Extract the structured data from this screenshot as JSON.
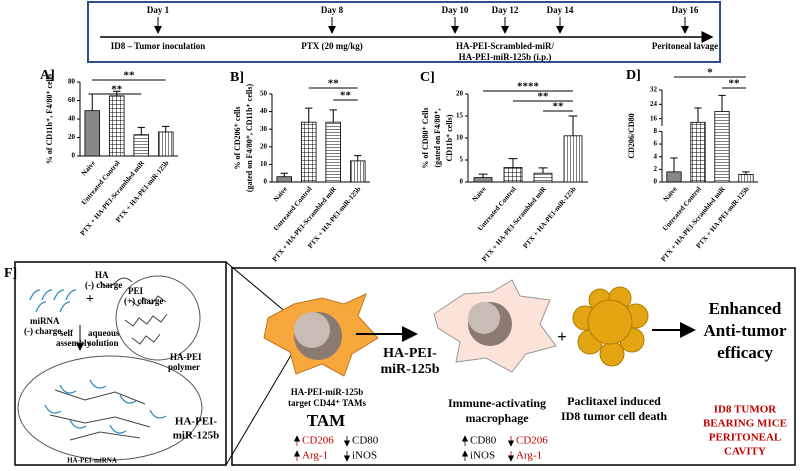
{
  "timeline": {
    "days": [
      "Day 1",
      "Day 8",
      "Day 10",
      "Day 12",
      "Day 14",
      "Day 16"
    ],
    "events": [
      "ID8 – Tumor inoculation",
      "PTX (20 mg/kg)",
      "HA-PEI-Scrambled-miR/",
      "HA-PEI-miR-125b (i.p.)",
      "Peritoneal lavage"
    ]
  },
  "chart_data": [
    {
      "type": "bar",
      "panel": "A]",
      "ylabel": [
        "% of CD11b⁺, F4/80⁺ cells"
      ],
      "categories": [
        "Naive",
        "Untreated Control",
        "PTX + HA-PEI-Scrambled miR",
        "PTX + HA-PEI-miR-125b"
      ],
      "values": [
        49,
        65,
        23,
        26
      ],
      "errors": [
        18,
        5,
        8,
        6
      ],
      "ylim": [
        0,
        80
      ],
      "yticks": [
        0,
        20,
        40,
        60,
        80
      ],
      "annotations": [
        "**",
        "**"
      ]
    },
    {
      "type": "bar",
      "panel": "B]",
      "ylabel": [
        "% of CD206⁺ cells",
        "(gated on F4/80⁺, CD11b⁺ cells)"
      ],
      "categories": [
        "Naive",
        "Untreated Control",
        "PTX + HA-PEI-Scrambled miR",
        "PTX + HA-PEI-miR-125b"
      ],
      "values": [
        3,
        34,
        34,
        12
      ],
      "errors": [
        2,
        8,
        7,
        3
      ],
      "ylim": [
        0,
        50
      ],
      "yticks": [
        0,
        10,
        20,
        30,
        40,
        50
      ],
      "annotations": [
        "**",
        "**"
      ]
    },
    {
      "type": "bar",
      "panel": "C]",
      "ylabel": [
        "% of CD80⁺ Cells",
        "(gated on F4/80⁺,",
        "CD11b⁺ cells)"
      ],
      "categories": [
        "Naive",
        "Untreated Control",
        "PTX + HA-PEI-Scrambled miR",
        "PTX + HA-PEI-miR-125b"
      ],
      "values": [
        1,
        3.3,
        2,
        10.5
      ],
      "errors": [
        0.8,
        2,
        1.2,
        4.5
      ],
      "ylim": [
        0,
        20
      ],
      "yticks": [
        0,
        5,
        10,
        15,
        20
      ],
      "annotations": [
        "****",
        "**",
        "**"
      ]
    },
    {
      "type": "bar",
      "panel": "D]",
      "ylabel": [
        "CD206/CD80"
      ],
      "categories": [
        "Naive",
        "Untreated Control",
        "PTX + HA-PEI-Scrambled miR",
        "PTX + HA-PEI-miR-125b"
      ],
      "values": [
        1.6,
        14,
        20,
        1.2
      ],
      "errors": [
        2.2,
        8,
        9,
        0.4
      ],
      "ylim": [
        0,
        32
      ],
      "ybreak": [
        8,
        12
      ],
      "yticks": [
        0,
        2,
        4,
        6,
        8,
        16,
        24,
        32
      ],
      "annotations": [
        "*",
        "**"
      ]
    }
  ],
  "panel_f": {
    "label": "F]",
    "left": {
      "ha": [
        "HA",
        "(-) charge"
      ],
      "pei": [
        "PEI",
        "(+) charge"
      ],
      "mirna": [
        "miRNA",
        "(-) charge"
      ],
      "plus": "+",
      "self_assembly": [
        "self",
        "assembly"
      ],
      "aqueous": [
        "aqueous",
        "solution"
      ],
      "polymer": [
        "HA-PEI",
        "polymer"
      ],
      "complex": "HA-PEI-miRNA",
      "name": [
        "HA-PEI-",
        "miR-125b"
      ]
    },
    "right": {
      "tam_caption": [
        "HA-PEI-miR-125b",
        "target CD44⁺ TAMs"
      ],
      "tam": "TAM",
      "arrow_label": [
        "HA-PEI-",
        "miR-125b"
      ],
      "macrophage": [
        "Immune-activating",
        "macrophage"
      ],
      "plus": "+",
      "death": [
        "Paclitaxel induced",
        "ID8 tumor cell death"
      ],
      "outcome": [
        "Enhanced",
        "Anti-tumor",
        "efficacy"
      ],
      "site": [
        "ID8 TUMOR",
        "BEARING MICE",
        "PERITONEAL",
        "CAVITY"
      ],
      "tam_markers": {
        "up": [
          "CD206",
          "Arg-1"
        ],
        "down": [
          "CD80",
          "iNOS"
        ]
      },
      "macrophage_markers": {
        "up": [
          "CD80",
          "iNOS"
        ],
        "down": [
          "CD206",
          "Arg-1"
        ]
      }
    }
  }
}
